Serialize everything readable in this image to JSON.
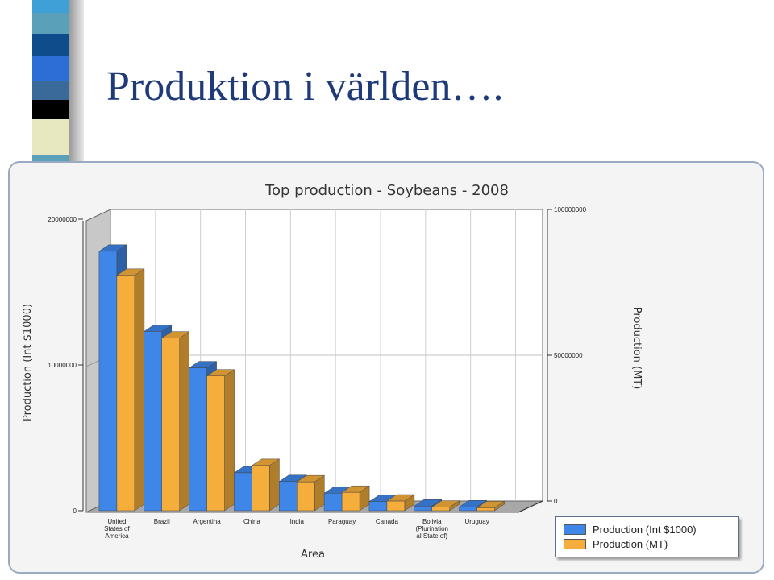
{
  "slide": {
    "title": "Produktion i världen…."
  },
  "colors": {
    "deco": [
      "#3fa0d8",
      "#5aa0b8",
      "#0e4c8c",
      "#2c6dd6",
      "#3a6a9a",
      "#000000",
      "#e8e8c0",
      "#5aa0b8"
    ]
  },
  "chart_data": {
    "type": "bar",
    "title": "Top production - Soybeans - 2008",
    "xlabel": "Area",
    "ylabel": "Production (Int $1000)",
    "y2label": "Production (MT)",
    "categories": [
      "United States of America",
      "Brazil",
      "Argentina",
      "China",
      "India",
      "Paraguay",
      "Canada",
      "Bolivia (Plurinational State of)",
      "Uruguay"
    ],
    "category_lines": [
      [
        "United",
        "States of",
        "America"
      ],
      [
        "Brazil"
      ],
      [
        "Argentina"
      ],
      [
        "China"
      ],
      [
        "India"
      ],
      [
        "Paraguay"
      ],
      [
        "Canada"
      ],
      [
        "Bolivia",
        "(Plurination",
        "al State of)"
      ],
      [
        "Uruguay"
      ]
    ],
    "series": [
      {
        "name": "Production (Int $1000)",
        "axis": "left",
        "color": "#3e86e8",
        "values": [
          17800000,
          12300000,
          9800000,
          2600000,
          2000000,
          1200000,
          620000,
          320000,
          260000
        ]
      },
      {
        "name": "Production (MT)",
        "axis": "right",
        "color": "#f5ae3c",
        "values": [
          80700000,
          59200000,
          46200000,
          15500000,
          9900000,
          6300000,
          3300000,
          1200000,
          1000000
        ]
      }
    ],
    "ylim": [
      0,
      20000000
    ],
    "y2lim": [
      0,
      100000000
    ],
    "yticks": [
      "0",
      "10000000",
      "20000000"
    ],
    "y2ticks": [
      "0",
      "50000000",
      "100000000"
    ],
    "grid": true,
    "legend": "bottom-right"
  }
}
